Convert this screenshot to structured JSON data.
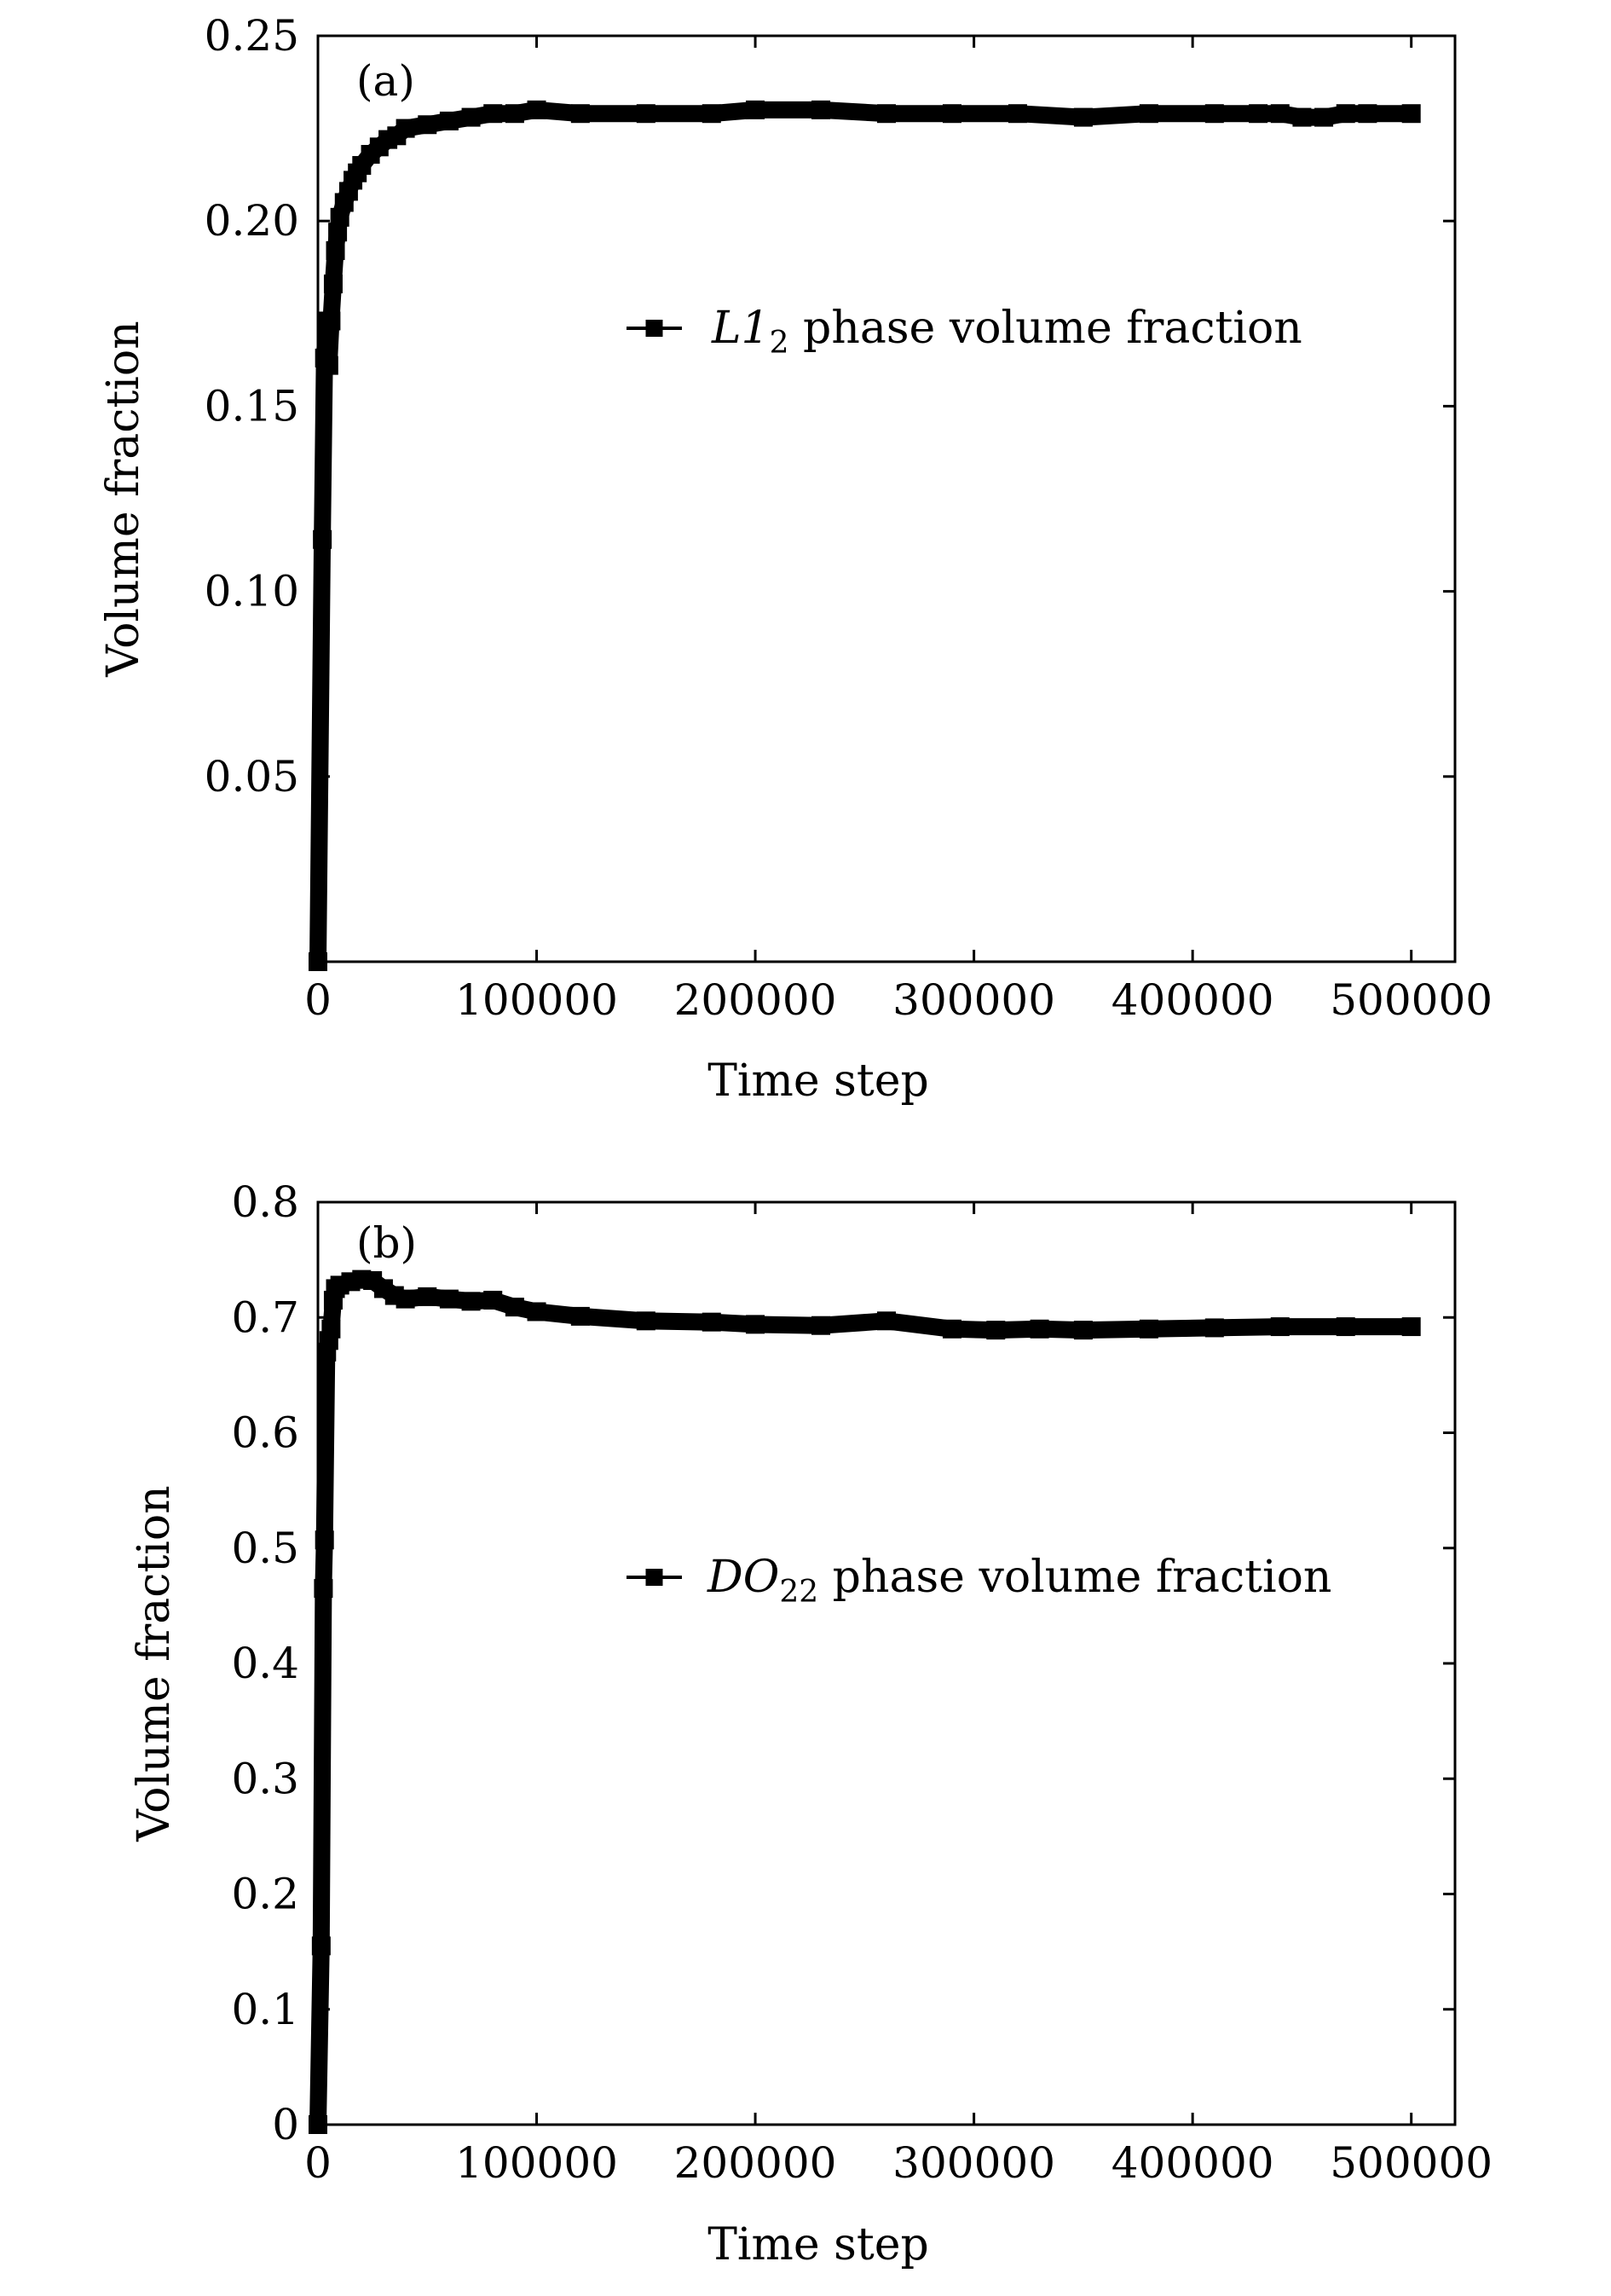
{
  "chart_data": [
    {
      "type": "line",
      "panel_label": "(a)",
      "xlabel": "Time step",
      "ylabel": "Volume fraction",
      "xlim": [
        0,
        520000
      ],
      "ylim": [
        0,
        0.25
      ],
      "xticks": [
        0,
        100000,
        200000,
        300000,
        400000,
        500000
      ],
      "xtick_labels": [
        "0",
        "100000",
        "200000",
        "300000",
        "400000",
        "500000"
      ],
      "yticks": [
        0.05,
        0.1,
        0.15,
        0.2,
        0.25
      ],
      "ytick_labels": [
        "0.05",
        "0.10",
        "0.15",
        "0.20",
        "0.25"
      ],
      "legend_position": "upper-right",
      "series": [
        {
          "name_main": "L1",
          "name_sub": "2",
          "name_rest": " phase volume fraction",
          "color": "#000000",
          "marker": "square",
          "x": [
            0,
            2000,
            3000,
            4000,
            5000,
            6000,
            7000,
            8000,
            9000,
            10000,
            12000,
            14000,
            16000,
            18000,
            20000,
            24000,
            28000,
            32000,
            36000,
            40000,
            50000,
            60000,
            70000,
            80000,
            90000,
            100000,
            120000,
            150000,
            180000,
            200000,
            230000,
            260000,
            290000,
            320000,
            350000,
            380000,
            410000,
            430000,
            440000,
            450000,
            460000,
            470000,
            480000,
            500000
          ],
          "y": [
            0.0,
            0.114,
            0.163,
            0.173,
            0.161,
            0.173,
            0.183,
            0.192,
            0.197,
            0.201,
            0.205,
            0.208,
            0.211,
            0.213,
            0.215,
            0.218,
            0.22,
            0.222,
            0.223,
            0.225,
            0.226,
            0.227,
            0.228,
            0.229,
            0.229,
            0.23,
            0.229,
            0.229,
            0.229,
            0.23,
            0.23,
            0.229,
            0.229,
            0.229,
            0.228,
            0.229,
            0.229,
            0.229,
            0.229,
            0.228,
            0.228,
            0.229,
            0.229,
            0.229
          ]
        }
      ]
    },
    {
      "type": "line",
      "panel_label": "(b)",
      "xlabel": "Time step",
      "ylabel": "Volume fraction",
      "xlim": [
        0,
        520000
      ],
      "ylim": [
        0,
        0.8
      ],
      "xticks": [
        0,
        100000,
        200000,
        300000,
        400000,
        500000
      ],
      "xtick_labels": [
        "0",
        "100000",
        "200000",
        "300000",
        "400000",
        "500000"
      ],
      "yticks": [
        0,
        0.1,
        0.2,
        0.3,
        0.4,
        0.5,
        0.6,
        0.7,
        0.8
      ],
      "ytick_labels": [
        "0",
        "0.1",
        "0.2",
        "0.3",
        "0.4",
        "0.5",
        "0.6",
        "0.7",
        "0.8"
      ],
      "legend_position": "center-right",
      "series": [
        {
          "name_main": "DO",
          "name_sub": "22",
          "name_rest": " phase volume fraction",
          "color": "#000000",
          "marker": "square",
          "x": [
            0,
            1500,
            2500,
            3000,
            4000,
            5000,
            6000,
            7000,
            8000,
            10000,
            15000,
            20000,
            25000,
            30000,
            35000,
            40000,
            50000,
            60000,
            70000,
            80000,
            90000,
            100000,
            120000,
            150000,
            180000,
            200000,
            230000,
            260000,
            290000,
            310000,
            330000,
            350000,
            380000,
            410000,
            440000,
            470000,
            500000
          ],
          "y": [
            0.0,
            0.155,
            0.465,
            0.507,
            0.67,
            0.68,
            0.69,
            0.715,
            0.725,
            0.728,
            0.731,
            0.733,
            0.732,
            0.725,
            0.719,
            0.716,
            0.718,
            0.716,
            0.714,
            0.715,
            0.709,
            0.705,
            0.701,
            0.697,
            0.696,
            0.694,
            0.693,
            0.697,
            0.69,
            0.689,
            0.69,
            0.689,
            0.69,
            0.691,
            0.692,
            0.692,
            0.692
          ]
        }
      ]
    }
  ]
}
